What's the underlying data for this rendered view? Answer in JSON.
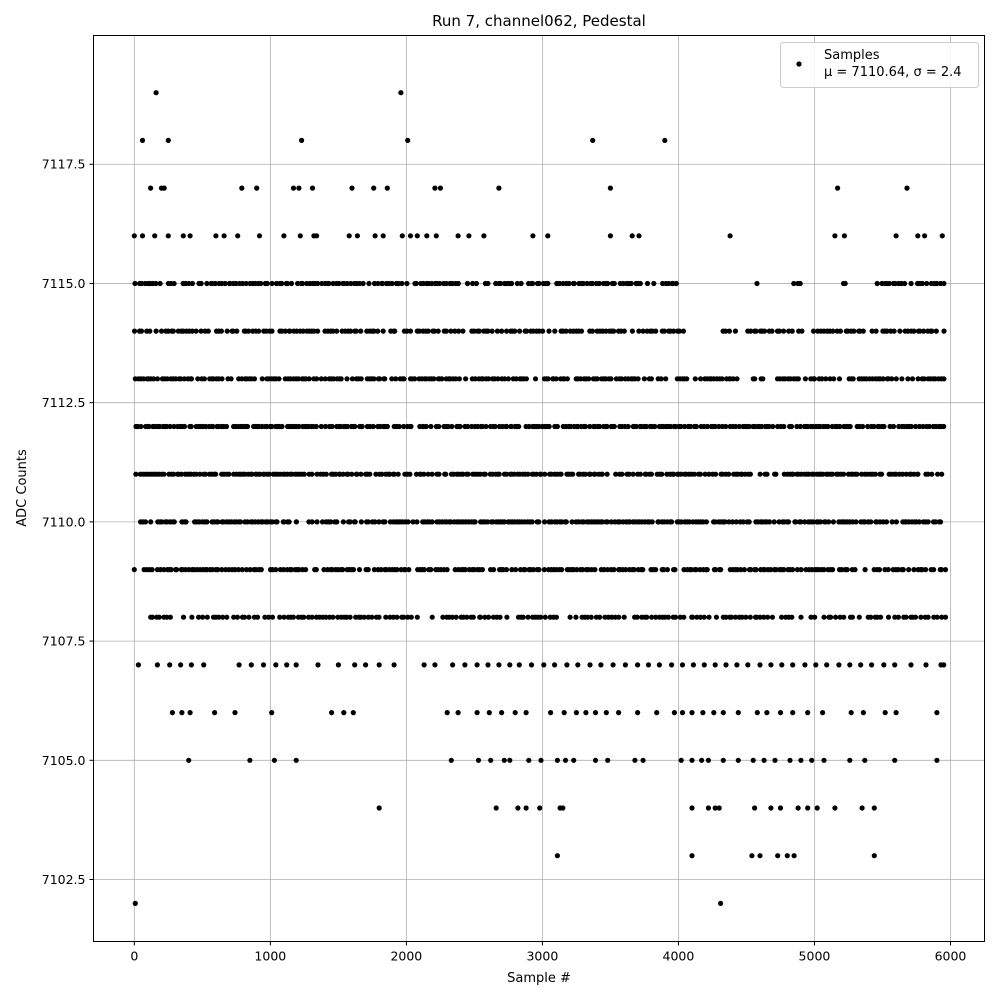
{
  "chart_data": {
    "type": "scatter",
    "title": "Run 7, channel062, Pedestal",
    "xlabel": "Sample #",
    "ylabel": "ADC Counts",
    "xlim": [
      -300,
      6250
    ],
    "ylim": [
      7101.2,
      7120.2
    ],
    "xticks": [
      0,
      1000,
      2000,
      3000,
      4000,
      5000,
      6000
    ],
    "xtick_labels": [
      "0",
      "1000",
      "2000",
      "3000",
      "4000",
      "5000",
      "6000"
    ],
    "yticks": [
      7102.5,
      7105.0,
      7107.5,
      7110.0,
      7112.5,
      7115.0,
      7117.5
    ],
    "ytick_labels": [
      "7102.5",
      "7105.0",
      "7107.5",
      "7110.0",
      "7112.5",
      "7115.0",
      "7117.5"
    ],
    "grid": true,
    "legend": {
      "placement": "top-right",
      "entries": [
        "Samples",
        "μ = 7110.64, σ = 2.4"
      ]
    },
    "series": [
      {
        "name": "Samples",
        "color": "#000000",
        "marker": "circle",
        "points": [
          [
            0,
            7109
          ],
          [
            60,
            7118
          ],
          [
            160,
            7119
          ],
          [
            250,
            7118
          ],
          [
            1230,
            7118
          ],
          [
            1960,
            7119
          ],
          [
            2010,
            7118
          ],
          [
            3370,
            7118
          ],
          [
            3900,
            7118
          ],
          [
            120,
            7117
          ],
          [
            200,
            7117
          ],
          [
            220,
            7117
          ],
          [
            790,
            7117
          ],
          [
            900,
            7117
          ],
          [
            1170,
            7117
          ],
          [
            1210,
            7117
          ],
          [
            1310,
            7117
          ],
          [
            1600,
            7117
          ],
          [
            1760,
            7117
          ],
          [
            1860,
            7117
          ],
          [
            2210,
            7117
          ],
          [
            2250,
            7117
          ],
          [
            2680,
            7117
          ],
          [
            3500,
            7117
          ],
          [
            5170,
            7117
          ],
          [
            5680,
            7117
          ],
          [
            0,
            7116
          ],
          [
            60,
            7116
          ],
          [
            150,
            7116
          ],
          [
            250,
            7116
          ],
          [
            360,
            7116
          ],
          [
            410,
            7116
          ],
          [
            600,
            7116
          ],
          [
            660,
            7116
          ],
          [
            760,
            7116
          ],
          [
            920,
            7116
          ],
          [
            1100,
            7116
          ],
          [
            1220,
            7116
          ],
          [
            1320,
            7116
          ],
          [
            1340,
            7116
          ],
          [
            1580,
            7116
          ],
          [
            1640,
            7116
          ],
          [
            1770,
            7116
          ],
          [
            1830,
            7116
          ],
          [
            1970,
            7116
          ],
          [
            2030,
            7116
          ],
          [
            2080,
            7116
          ],
          [
            2150,
            7116
          ],
          [
            2220,
            7116
          ],
          [
            2380,
            7116
          ],
          [
            2460,
            7116
          ],
          [
            2570,
            7116
          ],
          [
            2930,
            7116
          ],
          [
            3040,
            7116
          ],
          [
            3500,
            7116
          ],
          [
            3660,
            7116
          ],
          [
            3710,
            7116
          ],
          [
            4380,
            7116
          ],
          [
            5150,
            7116
          ],
          [
            5220,
            7116
          ],
          [
            5600,
            7116
          ],
          [
            5760,
            7116
          ],
          [
            5810,
            7116
          ],
          [
            5940,
            7116
          ],
          [
            7,
            7102
          ],
          [
            4310,
            7102
          ],
          [
            3110,
            7103
          ],
          [
            4100,
            7103
          ],
          [
            4540,
            7103
          ],
          [
            4600,
            7103
          ],
          [
            4730,
            7103
          ],
          [
            4800,
            7103
          ],
          [
            4850,
            7103
          ],
          [
            5440,
            7103
          ],
          [
            1800,
            7104
          ],
          [
            2660,
            7104
          ],
          [
            2820,
            7104
          ],
          [
            2880,
            7104
          ],
          [
            2980,
            7104
          ],
          [
            3130,
            7104
          ],
          [
            3150,
            7104
          ],
          [
            4100,
            7104
          ],
          [
            4220,
            7104
          ],
          [
            4270,
            7104
          ],
          [
            4300,
            7104
          ],
          [
            4560,
            7104
          ],
          [
            4680,
            7104
          ],
          [
            4750,
            7104
          ],
          [
            4880,
            7104
          ],
          [
            4950,
            7104
          ],
          [
            5020,
            7104
          ],
          [
            5150,
            7104
          ],
          [
            5350,
            7104
          ],
          [
            5440,
            7104
          ],
          [
            400,
            7105
          ],
          [
            850,
            7105
          ],
          [
            1030,
            7105
          ],
          [
            1190,
            7105
          ],
          [
            2330,
            7105
          ],
          [
            2530,
            7105
          ],
          [
            2620,
            7105
          ],
          [
            2720,
            7105
          ],
          [
            2760,
            7105
          ],
          [
            2900,
            7105
          ],
          [
            2990,
            7105
          ],
          [
            3110,
            7105
          ],
          [
            3170,
            7105
          ],
          [
            3230,
            7105
          ],
          [
            3390,
            7105
          ],
          [
            3480,
            7105
          ],
          [
            3680,
            7105
          ],
          [
            3740,
            7105
          ],
          [
            4020,
            7105
          ],
          [
            4100,
            7105
          ],
          [
            4170,
            7105
          ],
          [
            4220,
            7105
          ],
          [
            4330,
            7105
          ],
          [
            4440,
            7105
          ],
          [
            4550,
            7105
          ],
          [
            4630,
            7105
          ],
          [
            4710,
            7105
          ],
          [
            4820,
            7105
          ],
          [
            4900,
            7105
          ],
          [
            4980,
            7105
          ],
          [
            5070,
            7105
          ],
          [
            5260,
            7105
          ],
          [
            5370,
            7105
          ],
          [
            5590,
            7105
          ],
          [
            5900,
            7105
          ],
          [
            280,
            7106
          ],
          [
            350,
            7106
          ],
          [
            410,
            7106
          ],
          [
            590,
            7106
          ],
          [
            740,
            7106
          ],
          [
            1010,
            7106
          ],
          [
            1450,
            7106
          ],
          [
            1540,
            7106
          ],
          [
            1610,
            7106
          ],
          [
            2300,
            7106
          ],
          [
            2380,
            7106
          ],
          [
            2520,
            7106
          ],
          [
            2610,
            7106
          ],
          [
            2700,
            7106
          ],
          [
            2800,
            7106
          ],
          [
            2880,
            7106
          ],
          [
            3060,
            7106
          ],
          [
            3160,
            7106
          ],
          [
            3250,
            7106
          ],
          [
            3320,
            7106
          ],
          [
            3390,
            7106
          ],
          [
            3470,
            7106
          ],
          [
            3560,
            7106
          ],
          [
            3700,
            7106
          ],
          [
            3840,
            7106
          ],
          [
            3970,
            7106
          ],
          [
            4030,
            7106
          ],
          [
            4100,
            7106
          ],
          [
            4180,
            7106
          ],
          [
            4260,
            7106
          ],
          [
            4330,
            7106
          ],
          [
            4440,
            7106
          ],
          [
            4580,
            7106
          ],
          [
            4650,
            7106
          ],
          [
            4750,
            7106
          ],
          [
            4840,
            7106
          ],
          [
            4950,
            7106
          ],
          [
            5060,
            7106
          ],
          [
            5270,
            7106
          ],
          [
            5360,
            7106
          ],
          [
            5520,
            7106
          ],
          [
            5600,
            7106
          ],
          [
            5900,
            7106
          ],
          [
            30,
            7107
          ],
          [
            170,
            7107
          ],
          [
            260,
            7107
          ],
          [
            340,
            7107
          ],
          [
            420,
            7107
          ],
          [
            510,
            7107
          ],
          [
            770,
            7107
          ],
          [
            860,
            7107
          ],
          [
            950,
            7107
          ],
          [
            1040,
            7107
          ],
          [
            1120,
            7107
          ],
          [
            1190,
            7107
          ],
          [
            1350,
            7107
          ],
          [
            1500,
            7107
          ],
          [
            1620,
            7107
          ],
          [
            1700,
            7107
          ],
          [
            1800,
            7107
          ],
          [
            1910,
            7107
          ],
          [
            2130,
            7107
          ],
          [
            2210,
            7107
          ],
          [
            2340,
            7107
          ],
          [
            2430,
            7107
          ],
          [
            2520,
            7107
          ],
          [
            2600,
            7107
          ],
          [
            2680,
            7107
          ],
          [
            2760,
            7107
          ],
          [
            2830,
            7107
          ],
          [
            2920,
            7107
          ],
          [
            3010,
            7107
          ],
          [
            3090,
            7107
          ],
          [
            3180,
            7107
          ],
          [
            3260,
            7107
          ],
          [
            3350,
            7107
          ],
          [
            3430,
            7107
          ],
          [
            3520,
            7107
          ],
          [
            3610,
            7107
          ],
          [
            3700,
            7107
          ],
          [
            3780,
            7107
          ],
          [
            3860,
            7107
          ],
          [
            3950,
            7107
          ],
          [
            4030,
            7107
          ],
          [
            4110,
            7107
          ],
          [
            4190,
            7107
          ],
          [
            4270,
            7107
          ],
          [
            4350,
            7107
          ],
          [
            4430,
            7107
          ],
          [
            4510,
            7107
          ],
          [
            4600,
            7107
          ],
          [
            4680,
            7107
          ],
          [
            4760,
            7107
          ],
          [
            4840,
            7107
          ],
          [
            4930,
            7107
          ],
          [
            5010,
            7107
          ],
          [
            5090,
            7107
          ],
          [
            5180,
            7107
          ],
          [
            5260,
            7107
          ],
          [
            5340,
            7107
          ],
          [
            5420,
            7107
          ],
          [
            5510,
            7107
          ],
          [
            5590,
            7107
          ],
          [
            5710,
            7107
          ],
          [
            5820,
            7107
          ],
          [
            5930,
            7107
          ],
          [
            5950,
            7107
          ]
        ]
      }
    ],
    "dense_levels": [
      {
        "y": 7115,
        "segments": [
          [
            0,
            4000
          ],
          [
            4560,
            4580
          ],
          [
            4840,
            4920
          ],
          [
            5200,
            5240
          ],
          [
            5460,
            5950
          ]
        ],
        "step": 22
      },
      {
        "y": 7114,
        "segments": [
          [
            0,
            4030
          ],
          [
            4320,
            4440
          ],
          [
            4500,
            4900
          ],
          [
            4980,
            5380
          ],
          [
            5420,
            5950
          ]
        ],
        "step": 22
      },
      {
        "y": 7113,
        "segments": [
          [
            0,
            3900
          ],
          [
            3980,
            4420
          ],
          [
            4540,
            4620
          ],
          [
            4680,
            5950
          ]
        ],
        "step": 20
      },
      {
        "y": 7112,
        "segments": [
          [
            0,
            5950
          ]
        ],
        "step": 18
      },
      {
        "y": 7111,
        "segments": [
          [
            0,
            5950
          ]
        ],
        "step": 18
      },
      {
        "y": 7110,
        "segments": [
          [
            20,
            5950
          ]
        ],
        "step": 18
      },
      {
        "y": 7109,
        "segments": [
          [
            70,
            5950
          ]
        ],
        "step": 20
      },
      {
        "y": 7108,
        "segments": [
          [
            100,
            2100
          ],
          [
            2180,
            5950
          ]
        ],
        "step": 26
      }
    ]
  }
}
